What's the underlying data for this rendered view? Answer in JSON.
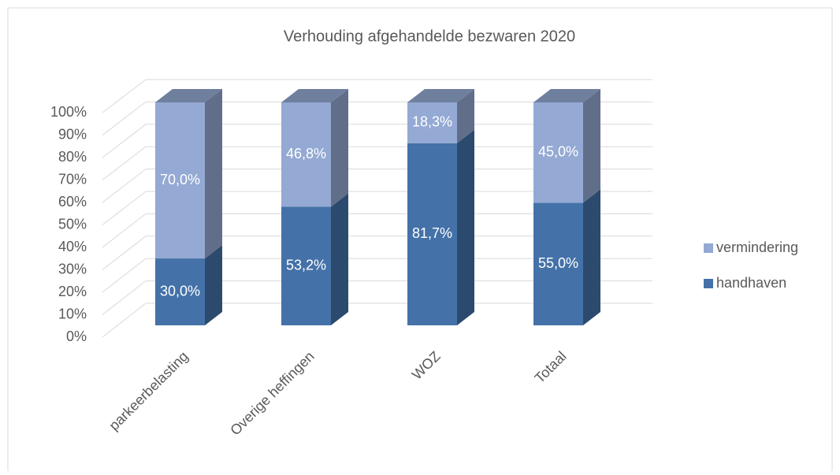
{
  "chart_data": {
    "type": "bar3d_stacked",
    "title": "Verhouding afgehandelde bezwaren 2020",
    "categories": [
      "parkeerbelasting",
      "Overige heffingen",
      "WOZ",
      "Totaal"
    ],
    "series": [
      {
        "name": "handhaven",
        "color": "#4472a8",
        "values": [
          30.0,
          53.2,
          81.7,
          55.0
        ],
        "value_labels": [
          "30,0%",
          "53,2%",
          "81,7%",
          "55,0%"
        ]
      },
      {
        "name": "vermindering",
        "color": "#94a9d3",
        "values": [
          70.0,
          46.8,
          18.3,
          45.0
        ],
        "value_labels": [
          "70,0%",
          "46,8%",
          "18,3%",
          "45,0%"
        ]
      }
    ],
    "ylim": [
      0,
      100
    ],
    "yticks": [
      {
        "value": 0,
        "label": "0%"
      },
      {
        "value": 10,
        "label": "10%"
      },
      {
        "value": 20,
        "label": "20%"
      },
      {
        "value": 30,
        "label": "30%"
      },
      {
        "value": 40,
        "label": "40%"
      },
      {
        "value": 50,
        "label": "50%"
      },
      {
        "value": 60,
        "label": "60%"
      },
      {
        "value": 70,
        "label": "70%"
      },
      {
        "value": 80,
        "label": "80%"
      },
      {
        "value": 90,
        "label": "90%"
      },
      {
        "value": 100,
        "label": "100%"
      }
    ],
    "grid": true,
    "legend": "right"
  }
}
